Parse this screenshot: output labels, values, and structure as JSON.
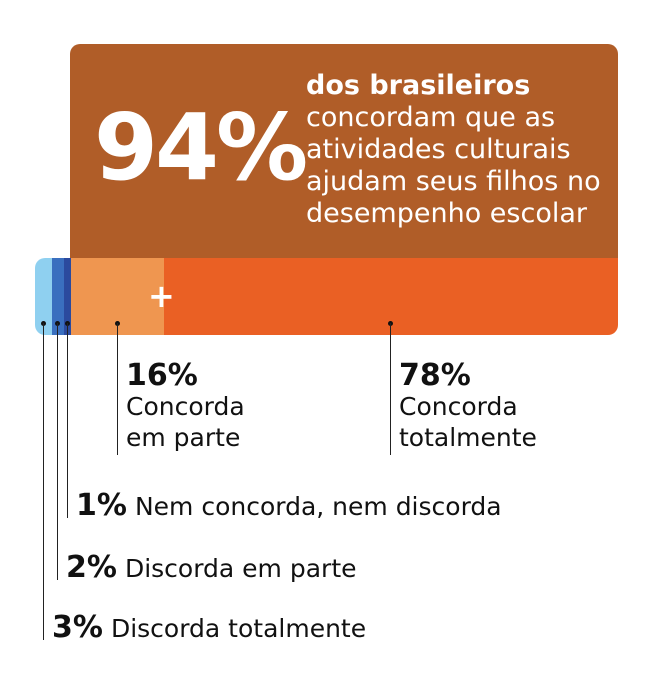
{
  "headline": {
    "value": "94%",
    "bold_text": "dos brasileiros",
    "text": "concordam que as atividades culturais ajudam seus filhos no desempenho escolar",
    "color": "#b05d28"
  },
  "chart_data": {
    "type": "bar",
    "orientation": "horizontal-stacked",
    "unit": "%",
    "series": [
      {
        "name": "Discorda totalmente",
        "value": 3,
        "label": "3%",
        "color": "#8fd0f0"
      },
      {
        "name": "Discorda em parte",
        "value": 2,
        "label": "2%",
        "color": "#3a6fbf"
      },
      {
        "name": "Nem concorda, nem discorda",
        "value": 1,
        "label": "1%",
        "color": "#2b4a9e"
      },
      {
        "name": "Concorda em parte",
        "value": 16,
        "label": "16%",
        "color": "#ef9650"
      },
      {
        "name": "Concorda totalmente",
        "value": 78,
        "label": "78%",
        "color": "#ea6024"
      }
    ],
    "plus_sign": "+"
  }
}
